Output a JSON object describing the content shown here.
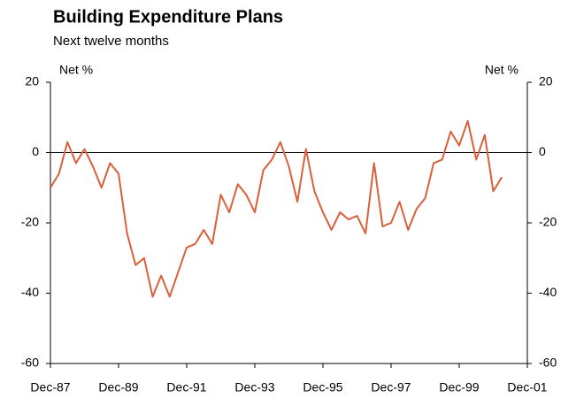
{
  "chart_data": {
    "type": "line",
    "title": "Building Expenditure Plans",
    "subtitle": "Next twelve months",
    "y_label": "Net %",
    "y2_label": "Net %",
    "x": [
      "1987-12",
      "1988-03",
      "1988-06",
      "1988-09",
      "1988-12",
      "1989-03",
      "1989-06",
      "1989-09",
      "1989-12",
      "1990-03",
      "1990-06",
      "1990-09",
      "1990-12",
      "1991-03",
      "1991-06",
      "1991-09",
      "1991-12",
      "1992-03",
      "1992-06",
      "1992-09",
      "1992-12",
      "1993-03",
      "1993-06",
      "1993-09",
      "1993-12",
      "1994-03",
      "1994-06",
      "1994-09",
      "1994-12",
      "1995-03",
      "1995-06",
      "1995-09",
      "1995-12",
      "1996-03",
      "1996-06",
      "1996-09",
      "1996-12",
      "1997-03",
      "1997-06",
      "1997-09",
      "1997-12",
      "1998-03",
      "1998-06",
      "1998-09",
      "1998-12",
      "1999-03",
      "1999-06",
      "1999-09",
      "1999-12",
      "2000-03",
      "2000-06",
      "2000-09",
      "2000-12",
      "2001-03"
    ],
    "series": [
      {
        "name": "Building expenditure plans",
        "color": "#d9603b",
        "values": [
          -10,
          -6,
          3,
          -3,
          1,
          -4,
          -10,
          -3,
          -6,
          -23,
          -32,
          -30,
          -41,
          -35,
          -41,
          -34,
          -27,
          -26,
          -22,
          -26,
          -12,
          -17,
          -9,
          -12,
          -17,
          -5,
          -2,
          3,
          -4,
          -14,
          1,
          -11,
          -17,
          -22,
          -17,
          -19,
          -18,
          -23,
          -3,
          -21,
          -20,
          -14,
          -22,
          -16,
          -13,
          -3,
          -2,
          6,
          2,
          9,
          -2,
          5,
          -11,
          -7
        ]
      }
    ],
    "xlim": [
      "1987-12",
      "2001-12"
    ],
    "xticks": [
      {
        "value": "1987-12",
        "label": "Dec-87"
      },
      {
        "value": "1989-12",
        "label": "Dec-89"
      },
      {
        "value": "1991-12",
        "label": "Dec-91"
      },
      {
        "value": "1993-12",
        "label": "Dec-93"
      },
      {
        "value": "1995-12",
        "label": "Dec-95"
      },
      {
        "value": "1997-12",
        "label": "Dec-97"
      },
      {
        "value": "1999-12",
        "label": "Dec-99"
      },
      {
        "value": "2001-12",
        "label": "Dec-01"
      }
    ],
    "ylim": [
      -60,
      20
    ],
    "yticks": [
      -60,
      -40,
      -20,
      0,
      20
    ],
    "y2lim": [
      -60,
      20
    ],
    "y2ticks": [
      -60,
      -40,
      -20,
      0,
      20
    ],
    "grid": false
  }
}
